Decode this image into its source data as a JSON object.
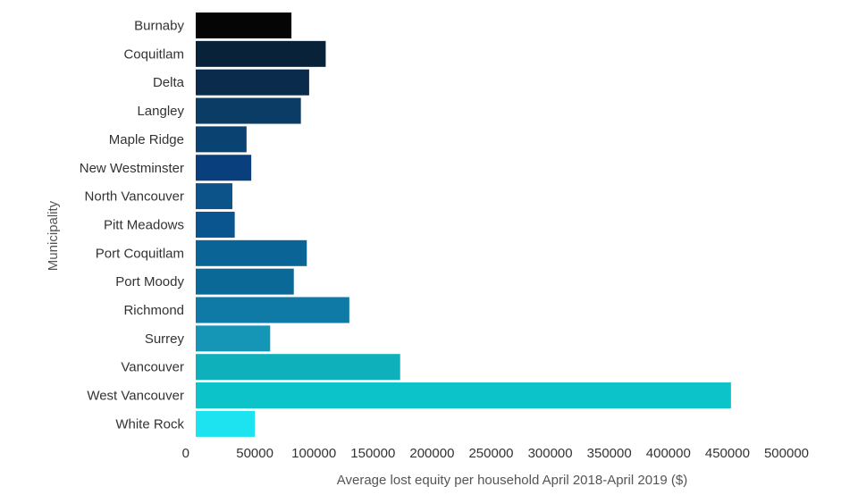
{
  "chart_data": {
    "type": "bar",
    "orientation": "horizontal",
    "xlabel": "Average lost equity per household April 2018-April 2019 ($)",
    "ylabel": "Municipality",
    "xlim": [
      0,
      500000
    ],
    "x_ticks": [
      0,
      50000,
      100000,
      150000,
      200000,
      250000,
      300000,
      350000,
      400000,
      450000,
      500000
    ],
    "grid": false,
    "categories": [
      "Burnaby",
      "Coquitlam",
      "Delta",
      "Langley",
      "Maple Ridge",
      "New Westminster",
      "North Vancouver",
      "Pitt Meadows",
      "Port Coquitlam",
      "Port Moody",
      "Richmond",
      "Surrey",
      "Vancouver",
      "West Vancouver",
      "White Rock"
    ],
    "values": [
      81000,
      110000,
      96000,
      89000,
      43000,
      47000,
      31000,
      33000,
      94000,
      83000,
      130000,
      63000,
      173000,
      453000,
      50000
    ],
    "colors": [
      "#050505",
      "#082339",
      "#0a2b4b",
      "#0b3c66",
      "#0a4271",
      "#083f7c",
      "#0c5389",
      "#0a558f",
      "#0a6496",
      "#0b6998",
      "#0f7aa6",
      "#1596b6",
      "#0eb0bc",
      "#0bc3c8",
      "#1ce3ef"
    ]
  }
}
